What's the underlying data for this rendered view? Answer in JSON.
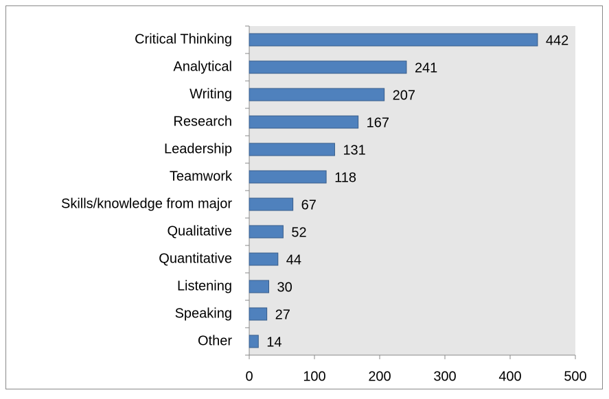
{
  "chart_data": {
    "type": "bar",
    "orientation": "horizontal",
    "categories": [
      "Critical Thinking",
      "Analytical",
      "Writing",
      "Research",
      "Leadership",
      "Teamwork",
      "Skills/knowledge from major",
      "Qualitative",
      "Quantitative",
      "Listening",
      "Speaking",
      "Other"
    ],
    "values": [
      442,
      241,
      207,
      167,
      131,
      118,
      67,
      52,
      44,
      30,
      27,
      14
    ],
    "color": "#4f81bd",
    "xlim": [
      0,
      500
    ],
    "xticks": [
      0,
      100,
      200,
      300,
      400,
      500
    ],
    "grid": false
  }
}
